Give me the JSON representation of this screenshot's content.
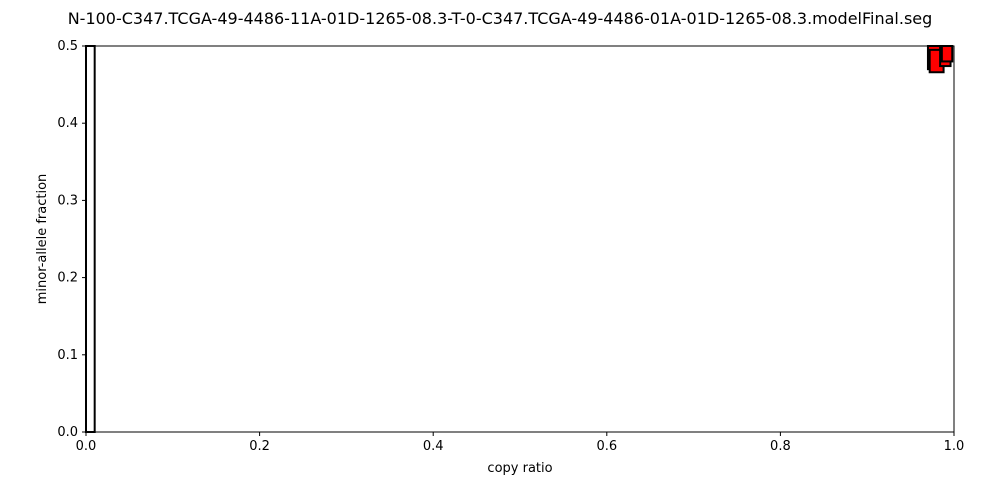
{
  "chart_data": {
    "type": "scatter",
    "title": "N-100-C347.TCGA-49-4486-11A-01D-1265-08.3-T-0-C347.TCGA-49-4486-01A-01D-1265-08.3.modelFinal.seg",
    "xlabel": "copy ratio",
    "ylabel": "minor-allele fraction",
    "xlim": [
      0,
      1.0
    ],
    "ylim": [
      0,
      0.5
    ],
    "xticks": [
      "0.0",
      "0.2",
      "0.4",
      "0.6",
      "0.8",
      "1.0"
    ],
    "yticks": [
      "0.0",
      "0.1",
      "0.2",
      "0.3",
      "0.4",
      "0.5"
    ],
    "grid": false,
    "marker_style": "rectangle with black outline, width = copy-ratio interval, height = minor-allele-fraction interval",
    "colors": {
      "segment_fill": "#ff0000",
      "edge": "#000000",
      "background": "#ffffff"
    },
    "segments": [
      {
        "x_low": 0.0,
        "x_high": 0.01,
        "y_low": 0.0,
        "y_high": 0.5,
        "fill": "#ffffff"
      },
      {
        "x_low": 0.97,
        "x_high": 0.985,
        "y_low": 0.47,
        "y_high": 0.5,
        "fill": "#ff0000"
      },
      {
        "x_low": 0.972,
        "x_high": 0.988,
        "y_low": 0.466,
        "y_high": 0.495,
        "fill": "#ff0000"
      },
      {
        "x_low": 0.984,
        "x_high": 0.996,
        "y_low": 0.474,
        "y_high": 0.5,
        "fill": "#ff0000"
      },
      {
        "x_low": 0.986,
        "x_high": 0.998,
        "y_low": 0.48,
        "y_high": 0.5,
        "fill": "#ff0000"
      }
    ]
  }
}
